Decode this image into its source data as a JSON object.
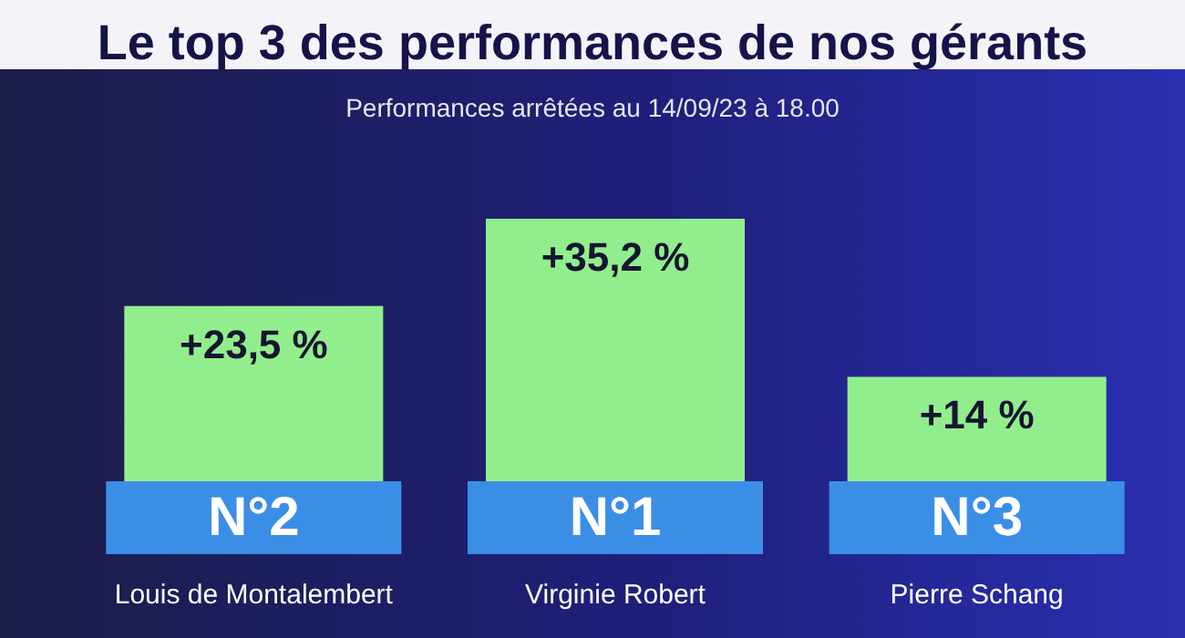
{
  "chart_data": {
    "type": "bar",
    "title": "Le top 3 des performances de nos gérants",
    "subtitle": "Performances arrêtées au 14/09/23 à 18.00",
    "categories": [
      "Louis de Montalembert",
      "Virginie Robert",
      "Pierre Schang"
    ],
    "values": [
      23.5,
      35.2,
      14
    ],
    "color": "#92ee8c",
    "value_labels": [
      "+23,5 %",
      "+35,2 %",
      "+14 %"
    ],
    "annotations": [
      "N°2",
      "N°1",
      "N°3"
    ]
  }
}
